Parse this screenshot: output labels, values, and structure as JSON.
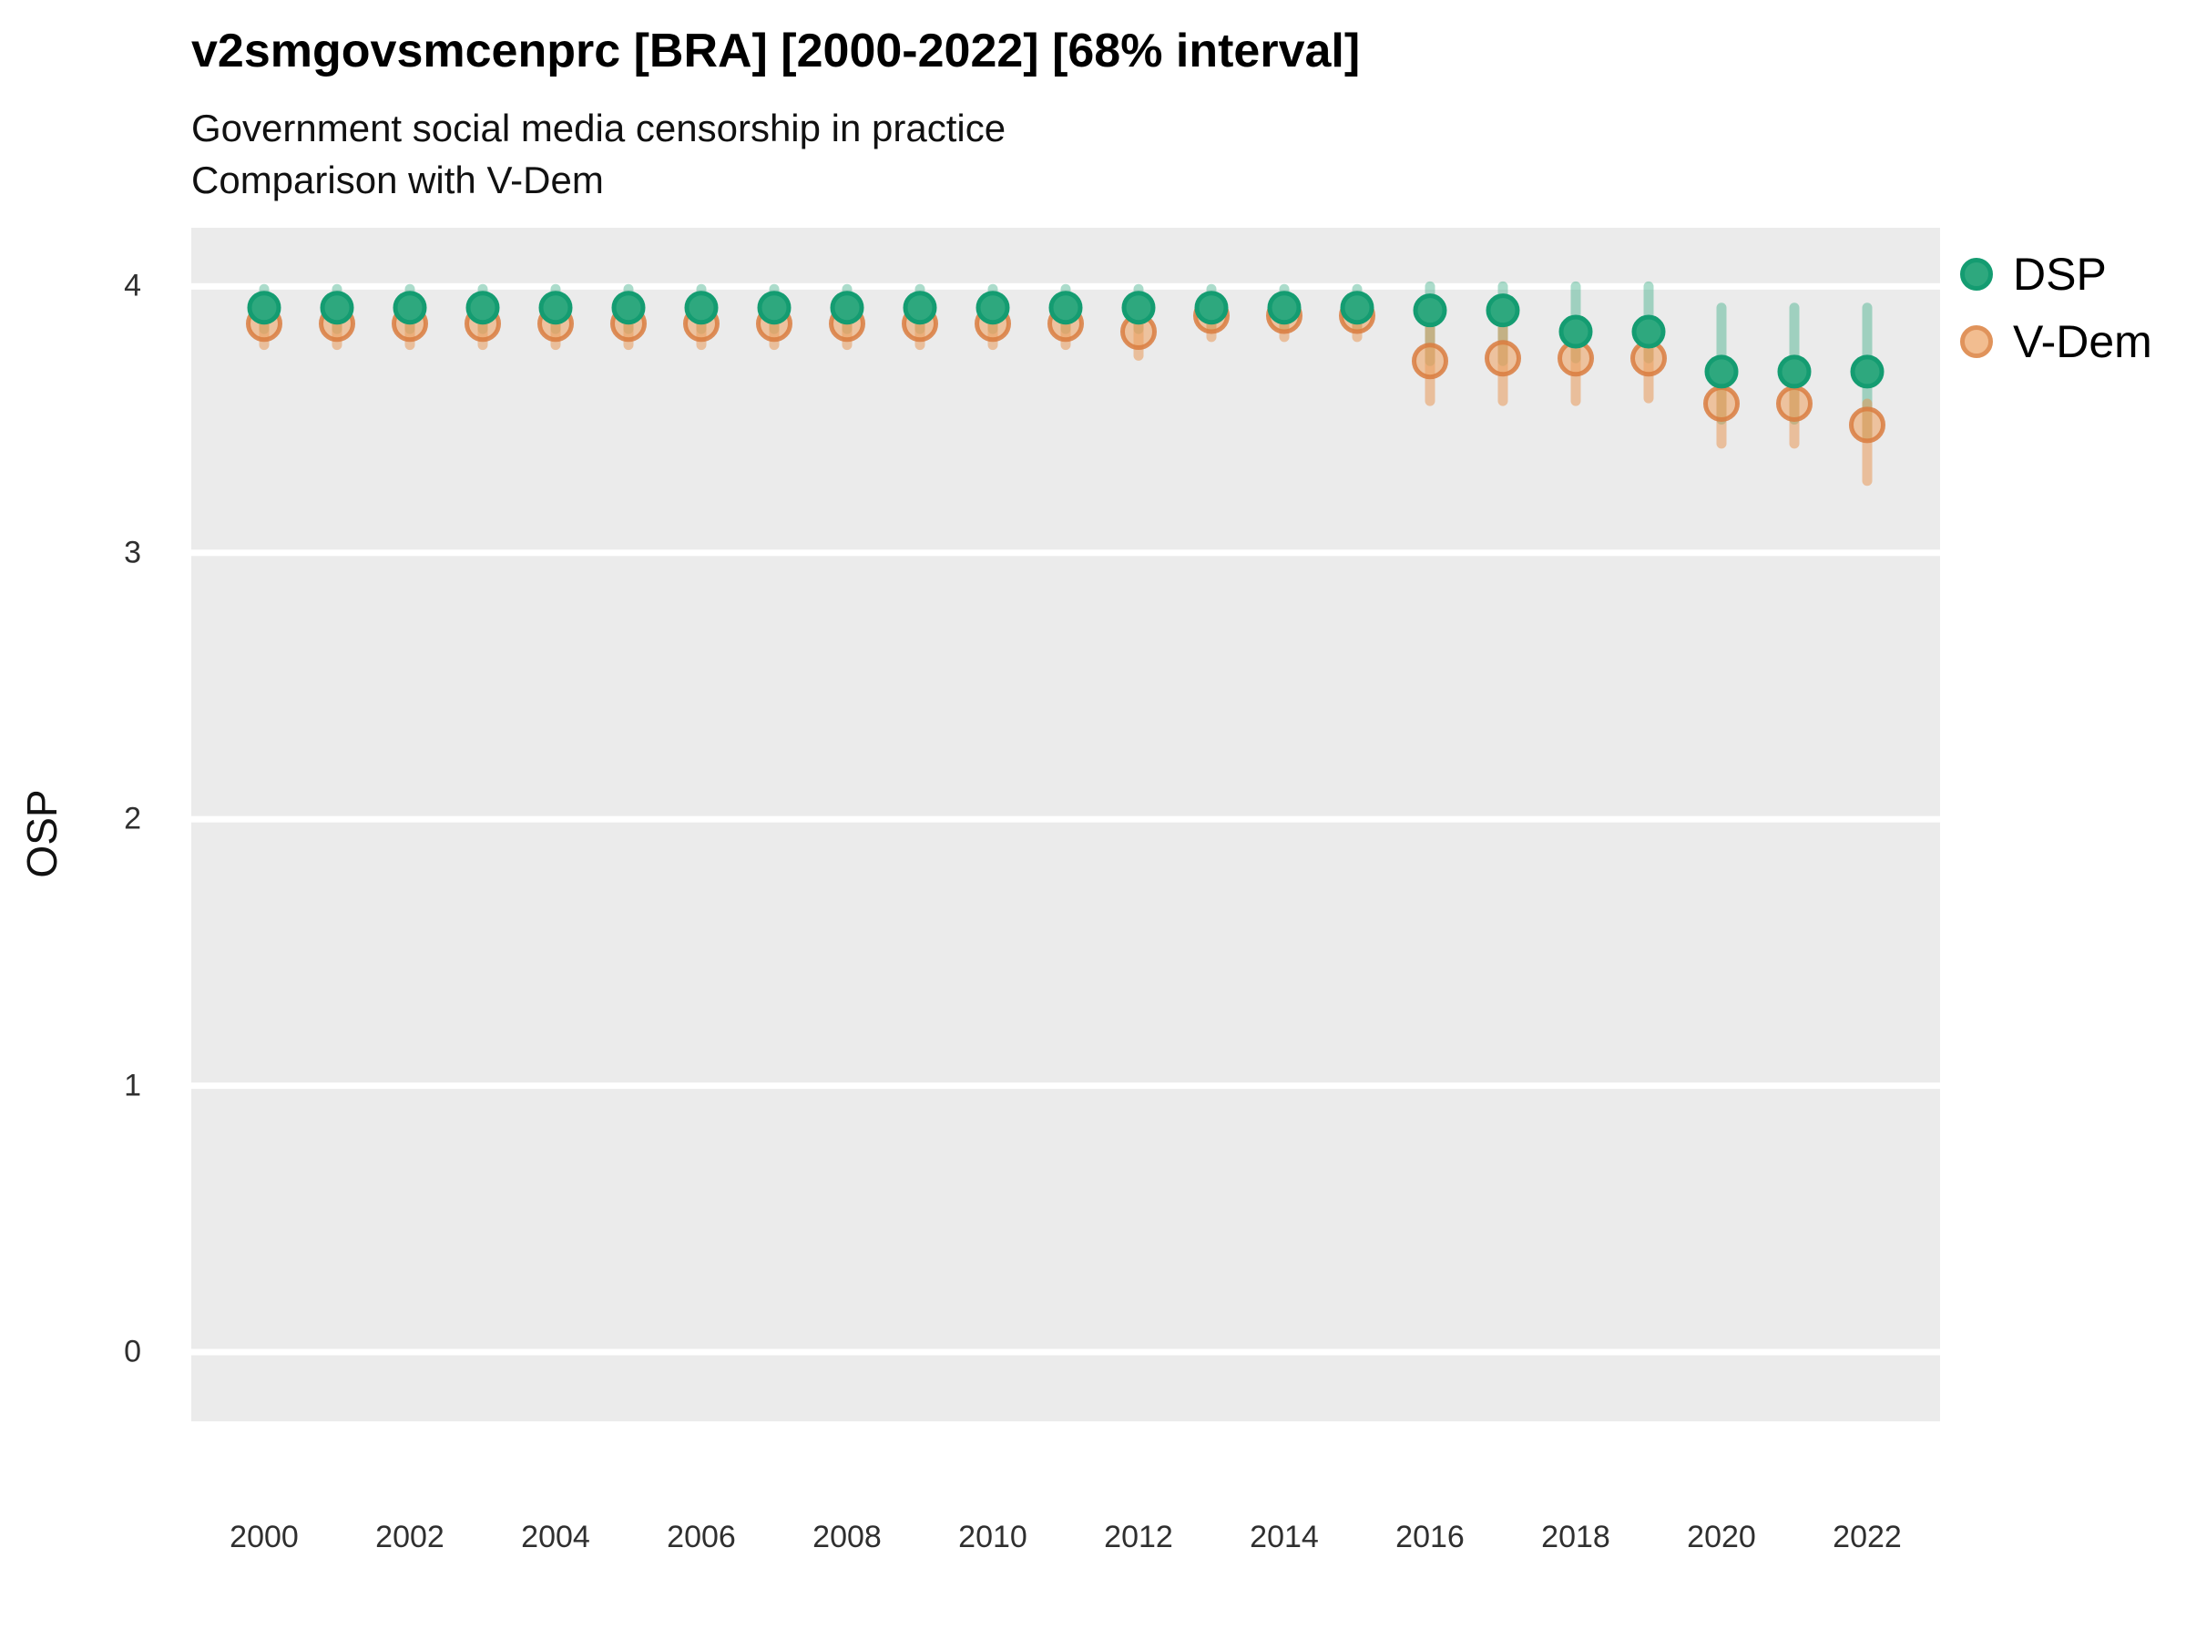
{
  "header": {
    "title": "v2smgovsmcenprc [BRA] [2000-2022] [68% interval]",
    "subtitle_line1": "Government social media censorship in practice",
    "subtitle_line2": "Comparison with V-Dem"
  },
  "chart_data": {
    "type": "scatter",
    "title": "v2smgovsmcenprc [BRA] [2000-2022] [68% interval]",
    "subtitle1": "Government social media censorship in practice",
    "subtitle2": "Comparison with V-Dem",
    "xlabel": "",
    "ylabel": "OSP",
    "interval_label": "68% interval",
    "country": "BRA",
    "grid": "horizontal-major-only",
    "legend_position": "right-top",
    "plot_bg_color": "#EBEBEB",
    "grid_color": "#FFFFFF",
    "xlim": [
      1999,
      2023
    ],
    "ylim": [
      -0.26,
      4.22
    ],
    "yticks": [
      4,
      3,
      2,
      1,
      0
    ],
    "xticks": [
      2000,
      2002,
      2004,
      2006,
      2008,
      2010,
      2012,
      2014,
      2016,
      2018,
      2020,
      2022
    ],
    "x": [
      2000,
      2001,
      2002,
      2003,
      2004,
      2005,
      2006,
      2007,
      2008,
      2009,
      2010,
      2011,
      2012,
      2013,
      2014,
      2015,
      2016,
      2017,
      2018,
      2019,
      2020,
      2021,
      2022
    ],
    "series": [
      {
        "name": "DSP",
        "dot_fill": "#2EA87E",
        "dot_stroke": "#149C71",
        "bar_color": "rgba(45,168,125,0.40)",
        "legend_fill": "#2EA87E",
        "legend_stroke": "#149C71",
        "values": [
          3.92,
          3.92,
          3.92,
          3.92,
          3.92,
          3.92,
          3.92,
          3.92,
          3.92,
          3.92,
          3.92,
          3.92,
          3.92,
          3.92,
          3.92,
          3.92,
          3.91,
          3.91,
          3.83,
          3.83,
          3.68,
          3.68,
          3.68
        ],
        "lower": [
          3.84,
          3.84,
          3.84,
          3.84,
          3.84,
          3.84,
          3.84,
          3.84,
          3.84,
          3.84,
          3.84,
          3.84,
          3.84,
          3.85,
          3.85,
          3.85,
          3.72,
          3.72,
          3.73,
          3.73,
          3.5,
          3.5,
          3.44
        ],
        "upper": [
          3.99,
          3.99,
          3.99,
          3.99,
          3.99,
          3.99,
          3.99,
          3.99,
          3.99,
          3.99,
          3.99,
          3.99,
          3.99,
          3.99,
          3.99,
          3.99,
          4.0,
          4.0,
          4.0,
          4.0,
          3.92,
          3.92,
          3.92
        ]
      },
      {
        "name": "V-Dem",
        "dot_fill": "rgba(238,160,95,0.55)",
        "dot_stroke": "rgba(217,125,64,0.85)",
        "bar_color": "rgba(232,145,76,0.50)",
        "legend_fill": "#F2BD90",
        "legend_stroke": "#E0935B",
        "values": [
          3.86,
          3.86,
          3.86,
          3.86,
          3.86,
          3.86,
          3.86,
          3.86,
          3.86,
          3.86,
          3.86,
          3.86,
          3.83,
          3.89,
          3.89,
          3.89,
          3.72,
          3.73,
          3.73,
          3.73,
          3.56,
          3.56,
          3.48
        ],
        "lower": [
          3.78,
          3.78,
          3.78,
          3.78,
          3.78,
          3.78,
          3.78,
          3.78,
          3.78,
          3.78,
          3.78,
          3.78,
          3.74,
          3.81,
          3.81,
          3.81,
          3.57,
          3.57,
          3.57,
          3.58,
          3.41,
          3.41,
          3.27
        ],
        "upper": [
          3.93,
          3.93,
          3.93,
          3.93,
          3.93,
          3.93,
          3.93,
          3.93,
          3.93,
          3.93,
          3.93,
          3.93,
          3.9,
          3.94,
          3.94,
          3.94,
          3.86,
          3.86,
          3.78,
          3.78,
          3.63,
          3.63,
          3.56
        ]
      }
    ]
  }
}
